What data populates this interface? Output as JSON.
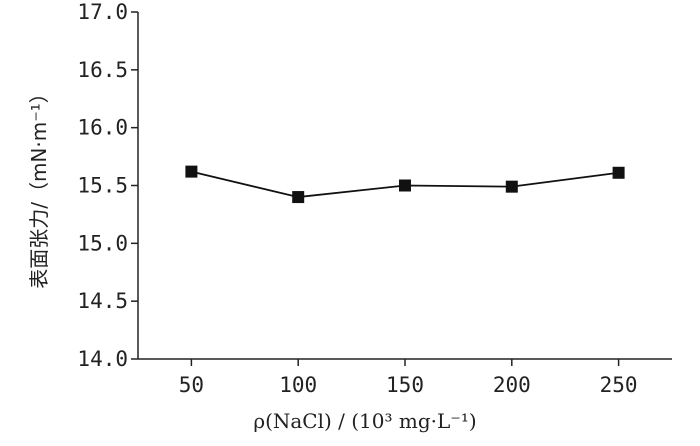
{
  "chart_data": {
    "type": "line",
    "x": [
      50,
      100,
      150,
      200,
      250
    ],
    "series": [
      {
        "values": [
          15.62,
          15.4,
          15.5,
          15.49,
          15.61
        ]
      }
    ],
    "xlim": [
      25,
      275
    ],
    "ylim": [
      14.0,
      17.0
    ],
    "x_ticks": [
      "50",
      "100",
      "150",
      "200",
      "250"
    ],
    "y_ticks": [
      "14.0",
      "14.5",
      "15.0",
      "15.5",
      "16.0",
      "16.5",
      "17.0"
    ],
    "xlabel": "ρ(NaCl) / (10³ mg·L⁻¹)",
    "ylabel": "表面张力/（mN·m⁻¹）",
    "grid": false,
    "marker": "square",
    "colors": {
      "line": "#111111",
      "axis": "#222222"
    }
  }
}
